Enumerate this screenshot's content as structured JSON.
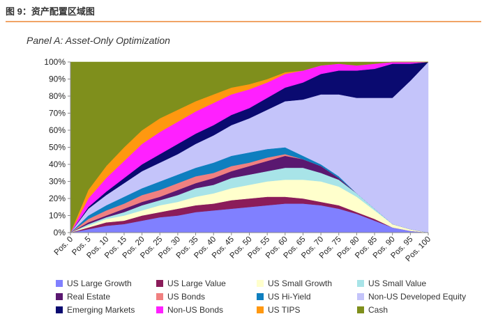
{
  "figure": {
    "header": "图 9：资产配置区域图",
    "panel_title": "Panel A: Asset-Only Optimization"
  },
  "chart_data": {
    "type": "area",
    "stacked": true,
    "title": "Panel A: Asset-Only Optimization",
    "xlabel": "",
    "ylabel": "",
    "ylim": [
      0,
      100
    ],
    "categories": [
      "Pos. 0",
      "Pos. 5",
      "Pos. 10",
      "Pos. 15",
      "Pos. 20",
      "Pos. 25",
      "Pos. 30",
      "Pos. 35",
      "Pos. 40",
      "Pos. 45",
      "Pos. 50",
      "Pos. 55",
      "Pos. 60",
      "Pos. 65",
      "Pos. 70",
      "Pos. 75",
      "Pos. 80",
      "Pos. 85",
      "Pos. 90",
      "Pos. 95",
      "Pos. 100"
    ],
    "y_ticks": [
      "0%",
      "10%",
      "20%",
      "30%",
      "40%",
      "50%",
      "60%",
      "70%",
      "80%",
      "90%",
      "100%"
    ],
    "series": [
      {
        "name": "US Large Growth",
        "color": "#8080ff",
        "values": [
          0,
          2,
          4,
          5,
          7,
          9,
          10,
          12,
          13,
          14,
          15,
          16,
          17,
          17,
          16,
          14,
          11,
          7,
          3,
          1,
          0
        ]
      },
      {
        "name": "US Large Value",
        "color": "#8b1c5a",
        "values": [
          0,
          1,
          2,
          2,
          3,
          3,
          4,
          4,
          4,
          5,
          5,
          5,
          4,
          3,
          2,
          2,
          1,
          1,
          0,
          0,
          0
        ]
      },
      {
        "name": "US Small Growth",
        "color": "#ffffcc",
        "values": [
          0,
          1,
          2,
          3,
          3,
          4,
          4,
          5,
          6,
          7,
          8,
          9,
          10,
          11,
          12,
          11,
          9,
          5,
          2,
          1,
          0
        ]
      },
      {
        "name": "US Small Value",
        "color": "#a8e4e8",
        "values": [
          0,
          1,
          1,
          2,
          3,
          3,
          4,
          5,
          5,
          6,
          6,
          6,
          7,
          7,
          5,
          4,
          2,
          1,
          0,
          0,
          0
        ]
      },
      {
        "name": "Real Estate",
        "color": "#5a1870",
        "values": [
          0,
          1,
          1,
          2,
          2,
          2,
          3,
          3,
          4,
          4,
          5,
          6,
          7,
          5,
          4,
          1,
          0,
          0,
          0,
          0,
          0
        ]
      },
      {
        "name": "US Bonds",
        "color": "#f08080",
        "values": [
          0,
          2,
          3,
          3,
          4,
          4,
          4,
          4,
          3,
          3,
          2,
          2,
          1,
          0,
          0,
          0,
          0,
          0,
          0,
          0,
          0
        ]
      },
      {
        "name": "US Hi-Yield",
        "color": "#0f7fbf",
        "values": [
          0,
          2,
          3,
          4,
          4,
          5,
          5,
          5,
          6,
          6,
          6,
          5,
          4,
          2,
          1,
          1,
          0,
          0,
          0,
          0,
          0
        ]
      },
      {
        "name": "Non-US Developed Equity",
        "color": "#c4c4fa",
        "values": [
          0,
          4,
          6,
          8,
          10,
          11,
          12,
          14,
          16,
          18,
          20,
          23,
          27,
          33,
          41,
          48,
          56,
          65,
          74,
          87,
          100
        ]
      },
      {
        "name": "Emerging Markets",
        "color": "#0a0a70",
        "values": [
          0,
          1,
          2,
          3,
          4,
          5,
          6,
          6,
          6,
          6,
          6,
          7,
          8,
          10,
          12,
          14,
          16,
          17,
          20,
          10,
          0
        ]
      },
      {
        "name": "Non-US Bonds",
        "color": "#ff20ff",
        "values": [
          0,
          5,
          8,
          10,
          12,
          13,
          13,
          13,
          13,
          12,
          11,
          9,
          8,
          7,
          5,
          4,
          3,
          3,
          1,
          1,
          0
        ]
      },
      {
        "name": "US TIPS",
        "color": "#ff9810",
        "values": [
          0,
          5,
          7,
          8,
          8,
          8,
          7,
          6,
          5,
          4,
          3,
          2,
          1,
          0,
          0,
          0,
          0,
          0,
          0,
          0,
          0
        ]
      },
      {
        "name": "Cash",
        "color": "#7f8f1c",
        "values": [
          100,
          75,
          61,
          50,
          40,
          33,
          28,
          23,
          19,
          15,
          13,
          10,
          6,
          5,
          2,
          1,
          2,
          1,
          0,
          0,
          0
        ]
      }
    ],
    "legend_position": "bottom"
  },
  "legend": {
    "rows": [
      [
        "US Large Growth",
        "US Large Value",
        "US Small Growth",
        "US Small Value"
      ],
      [
        "Real Estate",
        "US Bonds",
        "US Hi-Yield",
        "Non-US Developed Equity"
      ],
      [
        "Emerging Markets",
        "Non-US Bonds",
        "US TIPS",
        "Cash"
      ]
    ]
  }
}
